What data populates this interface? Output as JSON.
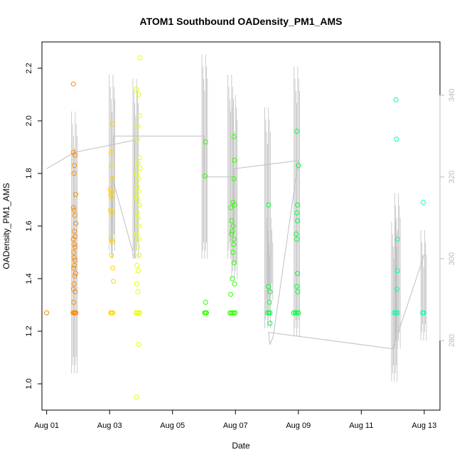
{
  "chart_data": {
    "type": "scatter",
    "title": "ATOM1 Southbound OADensity_PM1_AMS",
    "xlabel": "Date",
    "ylabel": "OADensity_PM1_AMS",
    "x_ticks": [
      "Aug 01",
      "Aug 03",
      "Aug 05",
      "Aug 07",
      "Aug 09",
      "Aug 11",
      "Aug 13"
    ],
    "x_tick_days": [
      1,
      3,
      5,
      7,
      9,
      11,
      13
    ],
    "xlim": [
      0.85,
      13.5
    ],
    "ylim": [
      0.9,
      2.3
    ],
    "y_ticks": [
      "1.0",
      "1.2",
      "1.4",
      "1.6",
      "1.8",
      "2.0",
      "2.2"
    ],
    "y_tick_values": [
      1.0,
      1.2,
      1.4,
      1.6,
      1.8,
      2.0,
      2.2
    ],
    "right_axis": {
      "ticks": [
        "280",
        "300",
        "320",
        "340"
      ],
      "tick_values": [
        280,
        300,
        320,
        340
      ],
      "lim": [
        263,
        353
      ],
      "color": "#bbbbbb"
    },
    "grid": false,
    "legend": "none",
    "point_colors": [
      "#ff8c00",
      "#ffd200",
      "#e6ff00",
      "#2aff00",
      "#00ff3a",
      "#00ffb0"
    ],
    "line_color": "#c0c0c0",
    "series": [
      {
        "color": "#ff8c00",
        "points": [
          [
            1.0,
            1.27
          ],
          [
            1.85,
            2.14
          ],
          [
            1.85,
            1.88
          ],
          [
            1.9,
            1.87
          ],
          [
            1.88,
            1.83
          ],
          [
            1.87,
            1.8
          ],
          [
            1.92,
            1.72
          ],
          [
            1.85,
            1.67
          ],
          [
            1.87,
            1.66
          ],
          [
            1.9,
            1.64
          ],
          [
            1.93,
            1.61
          ],
          [
            1.85,
            1.55
          ],
          [
            1.88,
            1.53
          ],
          [
            1.9,
            1.52
          ],
          [
            1.86,
            1.5
          ],
          [
            1.87,
            1.48
          ],
          [
            1.9,
            1.47
          ],
          [
            1.88,
            1.45
          ],
          [
            1.86,
            1.44
          ],
          [
            1.92,
            1.42
          ],
          [
            1.89,
            1.41
          ],
          [
            1.87,
            1.38
          ],
          [
            1.85,
            1.36
          ],
          [
            1.91,
            1.35
          ],
          [
            1.86,
            1.31
          ],
          [
            1.88,
            1.58
          ],
          [
            1.9,
            1.56
          ],
          [
            1.84,
            1.27
          ],
          [
            1.87,
            1.27
          ],
          [
            1.9,
            1.27
          ],
          [
            1.93,
            1.27
          ]
        ]
      },
      {
        "color": "#ffd200",
        "points": [
          [
            3.05,
            1.88
          ],
          [
            3.1,
            1.99
          ],
          [
            3.05,
            1.83
          ],
          [
            3.08,
            1.78
          ],
          [
            3.02,
            1.74
          ],
          [
            3.06,
            1.73
          ],
          [
            3.04,
            1.72
          ],
          [
            3.07,
            1.71
          ],
          [
            3.03,
            1.66
          ],
          [
            3.08,
            1.65
          ],
          [
            3.05,
            1.55
          ],
          [
            3.09,
            1.54
          ],
          [
            3.06,
            1.49
          ],
          [
            3.1,
            1.44
          ],
          [
            3.12,
            1.39
          ],
          [
            3.04,
            1.27
          ],
          [
            3.07,
            1.27
          ],
          [
            3.1,
            1.27
          ]
        ]
      },
      {
        "color": "#e6ff00",
        "points": [
          [
            3.97,
            2.24
          ],
          [
            3.85,
            2.12
          ],
          [
            3.92,
            2.1
          ],
          [
            3.95,
            2.02
          ],
          [
            3.9,
            1.98
          ],
          [
            3.88,
            1.93
          ],
          [
            3.95,
            1.86
          ],
          [
            3.9,
            1.84
          ],
          [
            3.97,
            1.82
          ],
          [
            3.86,
            1.8
          ],
          [
            3.92,
            1.78
          ],
          [
            3.87,
            1.75
          ],
          [
            3.93,
            1.73
          ],
          [
            3.85,
            1.71
          ],
          [
            3.9,
            1.7
          ],
          [
            3.95,
            1.68
          ],
          [
            3.88,
            1.65
          ],
          [
            3.9,
            1.63
          ],
          [
            3.93,
            1.6
          ],
          [
            3.86,
            1.57
          ],
          [
            3.92,
            1.55
          ],
          [
            3.89,
            1.52
          ],
          [
            3.94,
            1.49
          ],
          [
            3.87,
            1.45
          ],
          [
            3.91,
            1.43
          ],
          [
            3.86,
            1.38
          ],
          [
            3.9,
            1.35
          ],
          [
            3.93,
            1.15
          ],
          [
            3.85,
            0.95
          ],
          [
            3.84,
            1.27
          ],
          [
            3.88,
            1.27
          ],
          [
            3.92,
            1.27
          ],
          [
            3.96,
            1.27
          ]
        ]
      },
      {
        "color": "#2aff00",
        "points": [
          [
            6.05,
            1.92
          ],
          [
            6.03,
            1.79
          ],
          [
            6.05,
            1.31
          ],
          [
            6.02,
            1.27
          ],
          [
            6.05,
            1.27
          ],
          [
            6.08,
            1.27
          ],
          [
            6.95,
            1.94
          ],
          [
            6.97,
            1.85
          ],
          [
            6.95,
            1.78
          ],
          [
            6.85,
            1.67
          ],
          [
            6.92,
            1.69
          ],
          [
            6.97,
            1.68
          ],
          [
            6.88,
            1.62
          ],
          [
            6.93,
            1.6
          ],
          [
            6.9,
            1.58
          ],
          [
            6.95,
            1.55
          ],
          [
            6.88,
            1.57
          ],
          [
            6.94,
            1.53
          ],
          [
            6.92,
            1.5
          ],
          [
            6.96,
            1.46
          ],
          [
            6.9,
            1.4
          ],
          [
            6.97,
            1.38
          ],
          [
            6.85,
            1.34
          ],
          [
            6.83,
            1.27
          ],
          [
            6.87,
            1.27
          ],
          [
            6.91,
            1.27
          ],
          [
            6.95,
            1.27
          ],
          [
            6.99,
            1.27
          ]
        ]
      },
      {
        "color": "#00ff3a",
        "points": [
          [
            8.05,
            1.68
          ],
          [
            8.05,
            1.37
          ],
          [
            8.1,
            1.35
          ],
          [
            8.08,
            1.31
          ],
          [
            8.1,
            1.23
          ],
          [
            8.02,
            1.27
          ],
          [
            8.06,
            1.27
          ],
          [
            8.1,
            1.27
          ],
          [
            8.95,
            1.96
          ],
          [
            9.0,
            1.83
          ],
          [
            8.97,
            1.68
          ],
          [
            8.95,
            1.65
          ],
          [
            8.97,
            1.62
          ],
          [
            8.93,
            1.57
          ],
          [
            8.95,
            1.55
          ],
          [
            8.97,
            1.42
          ],
          [
            8.95,
            1.37
          ],
          [
            8.98,
            1.35
          ],
          [
            8.85,
            1.27
          ],
          [
            8.9,
            1.27
          ],
          [
            8.95,
            1.27
          ],
          [
            9.0,
            1.27
          ]
        ]
      },
      {
        "color": "#00ffb0",
        "points": [
          [
            12.1,
            2.08
          ],
          [
            12.12,
            1.93
          ],
          [
            12.15,
            1.55
          ],
          [
            12.15,
            1.43
          ],
          [
            12.13,
            1.36
          ],
          [
            12.05,
            1.27
          ],
          [
            12.1,
            1.27
          ],
          [
            12.15,
            1.27
          ],
          [
            12.97,
            1.69
          ],
          [
            12.95,
            1.27
          ],
          [
            12.98,
            1.27
          ]
        ]
      }
    ],
    "line_series": {
      "axis": "right",
      "points": [
        [
          1.0,
          322
        ],
        [
          1.88,
          326
        ],
        [
          3.8,
          329
        ],
        [
          3.8,
          300
        ],
        [
          3.08,
          320
        ],
        [
          3.05,
          304
        ],
        [
          3.08,
          300
        ],
        [
          3.12,
          330
        ],
        [
          6.0,
          330
        ],
        [
          6.0,
          320
        ],
        [
          6.95,
          320
        ],
        [
          6.95,
          306
        ],
        [
          6.95,
          322
        ],
        [
          9.0,
          324
        ],
        [
          8.2,
          281
        ],
        [
          8.1,
          279
        ],
        [
          8.05,
          282
        ],
        [
          12.0,
          278
        ],
        [
          13.0,
          301
        ]
      ],
      "spikes": [
        [
          1.88,
          272,
          336
        ],
        [
          3.08,
          302,
          345
        ],
        [
          3.83,
          300,
          344
        ],
        [
          6.02,
          300,
          350
        ],
        [
          6.85,
          300,
          345
        ],
        [
          6.97,
          295,
          340
        ],
        [
          8.02,
          283,
          337
        ],
        [
          8.1,
          290,
          310
        ],
        [
          8.95,
          281,
          347
        ],
        [
          12.05,
          270,
          309
        ],
        [
          12.15,
          278,
          316
        ],
        [
          12.98,
          280,
          307
        ]
      ]
    }
  }
}
